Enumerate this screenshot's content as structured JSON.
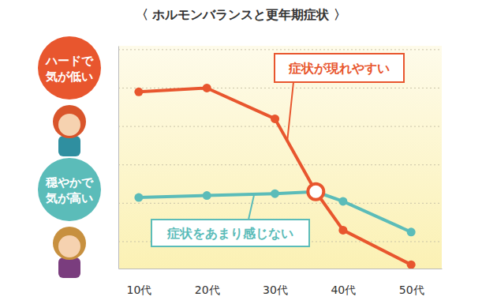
{
  "chart_data": {
    "type": "line",
    "title": "〈 ホルモンバランスと更年期症状 〉",
    "x": [
      10,
      20,
      30,
      36,
      40,
      50
    ],
    "xlim": [
      7,
      54.5
    ],
    "xticks": [
      {
        "value": 10,
        "label": "10代"
      },
      {
        "value": 20,
        "label": "20代"
      },
      {
        "value": 30,
        "label": "30代"
      },
      {
        "value": 40,
        "label": "40代"
      },
      {
        "value": 50,
        "label": "50代"
      }
    ],
    "ylim": [
      0.3,
      6.1
    ],
    "yticks": [
      1,
      2,
      3,
      4,
      5,
      6
    ],
    "grid": true,
    "tick_labels": "x",
    "series": [
      {
        "name": "ハードで気が低い",
        "color": "#e8562e",
        "marker": "circle",
        "values": [
          4.9,
          5.0,
          4.2,
          2.3,
          1.3,
          0.4
        ]
      },
      {
        "name": "穏やかで気が高い",
        "color": "#5bbcb9",
        "marker": "circle",
        "values": [
          2.15,
          2.2,
          2.25,
          2.3,
          2.05,
          1.25
        ]
      }
    ],
    "annotations": [
      {
        "text": "症状が現れやすい",
        "series": 0
      },
      {
        "text": "症状をあまり感じない",
        "series": 1
      }
    ],
    "crossing": {
      "x": 36,
      "y": 2.3
    }
  }
}
